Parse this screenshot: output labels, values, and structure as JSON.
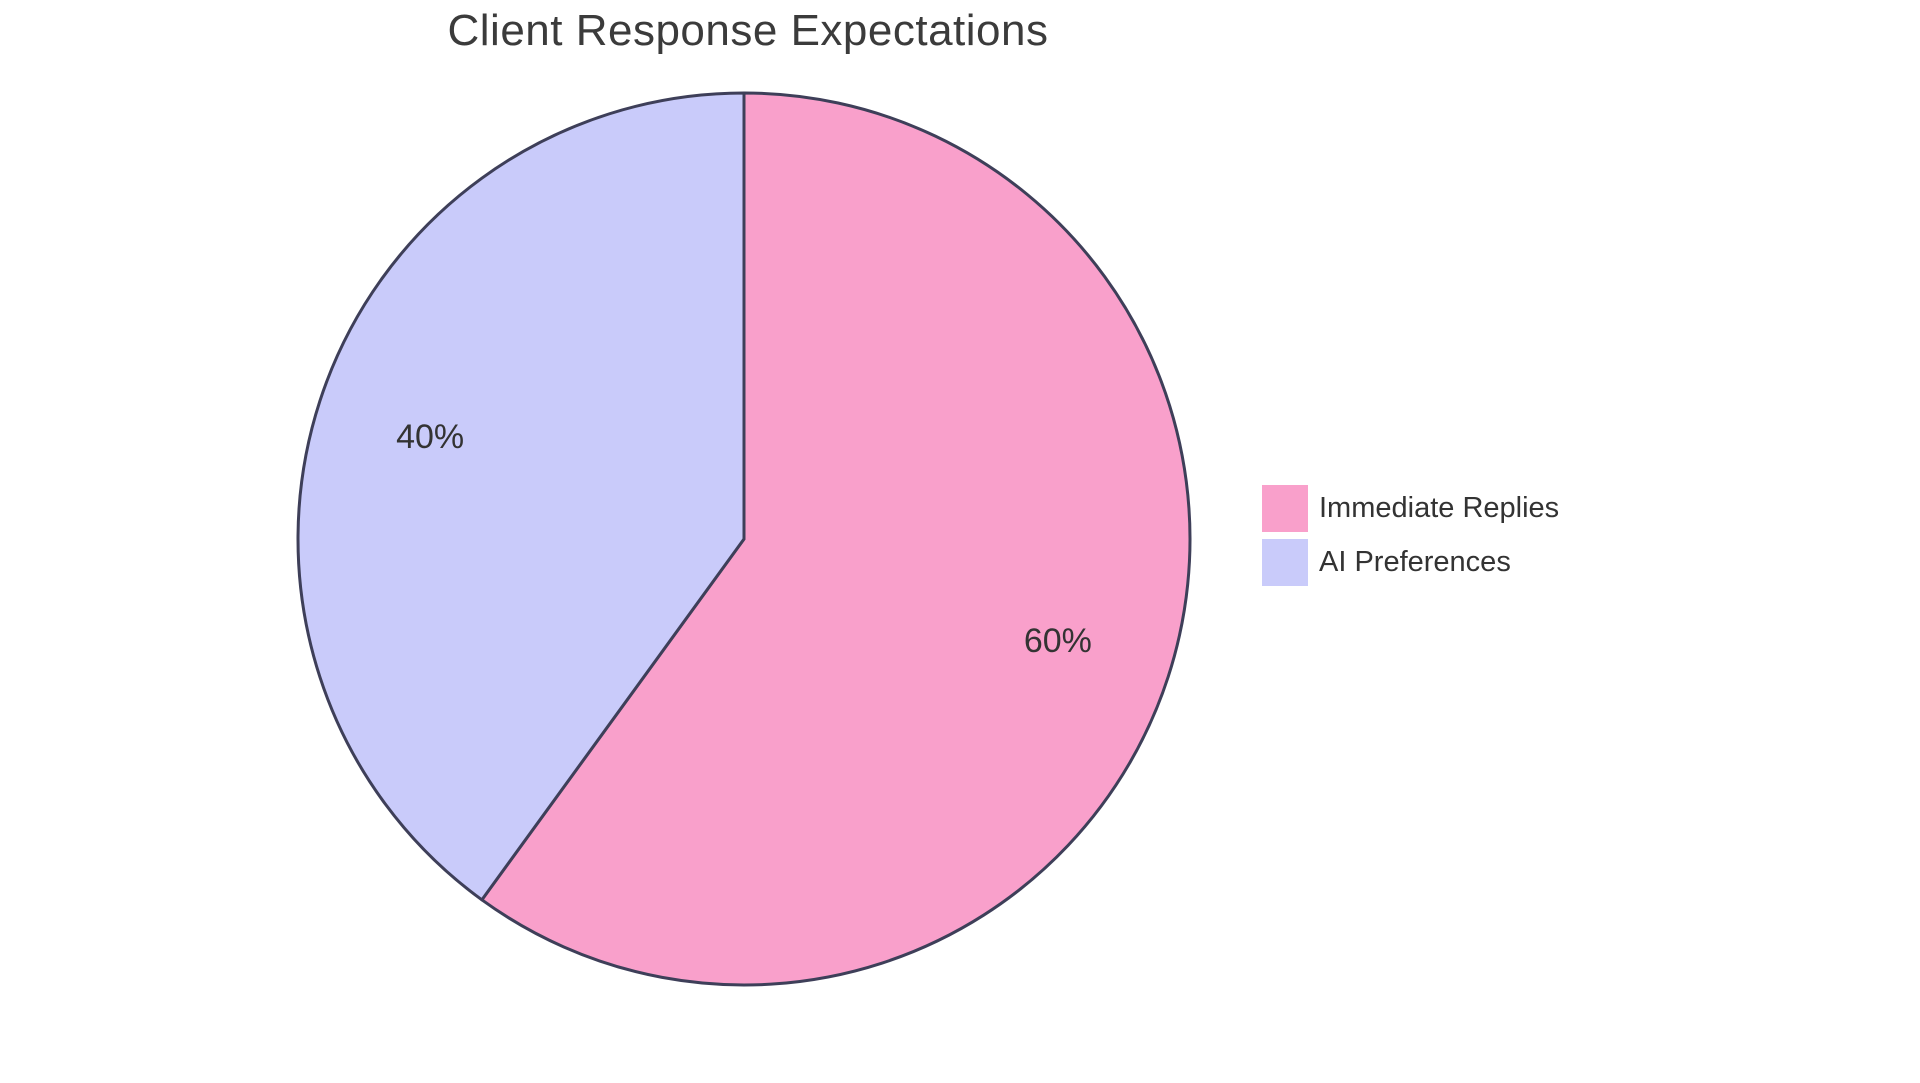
{
  "chart_data": {
    "type": "pie",
    "title": "Client Response Expectations",
    "slices": [
      {
        "label": "Immediate Replies",
        "value": 60,
        "pct_label": "60%",
        "color": "#F9A0CB"
      },
      {
        "label": "AI Preferences",
        "value": 40,
        "pct_label": "40%",
        "color": "#C9CBFA"
      }
    ],
    "start_angle_deg": 0,
    "direction": "clockwise",
    "stroke_color": "#3E3F59",
    "stroke_width": 3,
    "label_color": "#333333",
    "title_color": "#3b3b3b",
    "legend_position": "right",
    "background": "#ffffff"
  }
}
